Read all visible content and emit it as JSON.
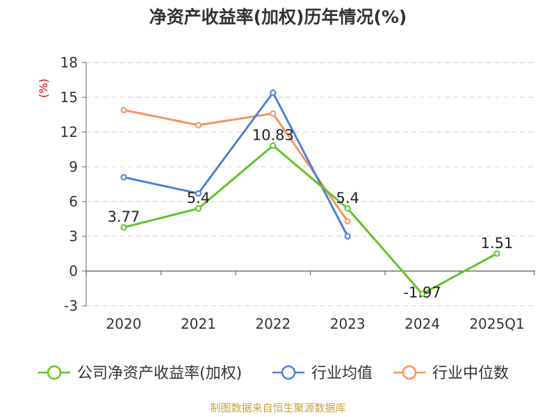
{
  "chart_data": {
    "type": "line",
    "title": "净资产收益率(加权)历年情况(%)",
    "ylabel": "(%)",
    "categories": [
      "2020",
      "2021",
      "2022",
      "2023",
      "2024",
      "2025Q1"
    ],
    "ylim": [
      -3,
      18
    ],
    "yticks": [
      18,
      15,
      12,
      9,
      6,
      3,
      0,
      -3
    ],
    "grid": true,
    "legend_position": "bottom",
    "series": [
      {
        "name": "公司净资产收益率(加权)",
        "color": "#5ec425",
        "values": [
          3.77,
          5.4,
          10.83,
          5.4,
          -1.97,
          1.51
        ],
        "labels": [
          "3.77",
          "5.4",
          "10.83",
          "5.4",
          "-1.97",
          "1.51"
        ]
      },
      {
        "name": "行业均值",
        "color": "#4a7fdc",
        "values": [
          8.1,
          6.7,
          15.4,
          3.0,
          null,
          null
        ]
      },
      {
        "name": "行业中位数",
        "color": "#f5935a",
        "values": [
          13.9,
          12.6,
          13.6,
          4.3,
          null,
          null
        ]
      }
    ]
  },
  "source": "制图数据来自恒生聚源数据库"
}
